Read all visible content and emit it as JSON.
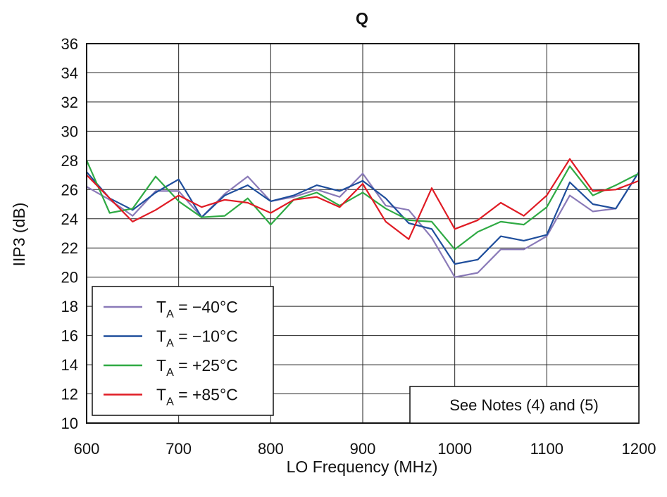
{
  "chart_data": {
    "type": "line",
    "title": "Q",
    "xlabel": "LO Frequency (MHz)",
    "ylabel": "IIP3 (dB)",
    "xlim": [
      600,
      1200
    ],
    "ylim": [
      10,
      36
    ],
    "xticks": [
      600,
      700,
      800,
      900,
      1000,
      1100,
      1200
    ],
    "yticks": [
      10,
      12,
      14,
      16,
      18,
      20,
      22,
      24,
      26,
      28,
      30,
      32,
      34,
      36
    ],
    "grid": true,
    "legend_position": "bottom-left",
    "x": [
      600,
      625,
      650,
      675,
      700,
      725,
      750,
      775,
      800,
      825,
      850,
      875,
      900,
      925,
      950,
      975,
      1000,
      1025,
      1050,
      1075,
      1100,
      1125,
      1150,
      1175,
      1200
    ],
    "series": [
      {
        "label_main": "T",
        "label_sub": "A",
        "label_rest": " = −40°C",
        "color": "#8a7ab8",
        "values": [
          26.2,
          25.3,
          24.2,
          25.9,
          25.9,
          24.1,
          25.7,
          26.9,
          25.2,
          25.5,
          26.0,
          25.5,
          27.1,
          24.9,
          24.6,
          22.7,
          20.0,
          20.3,
          21.9,
          21.9,
          22.8,
          25.6,
          24.5,
          24.7,
          27.2
        ]
      },
      {
        "label_main": "T",
        "label_sub": "A",
        "label_rest": " = −10°C",
        "color": "#1f4e9c",
        "values": [
          27.2,
          25.4,
          24.6,
          25.8,
          26.7,
          24.1,
          25.6,
          26.3,
          25.2,
          25.6,
          26.3,
          25.9,
          26.6,
          25.4,
          23.7,
          23.3,
          20.9,
          21.2,
          22.8,
          22.5,
          22.9,
          26.5,
          25.0,
          24.7,
          27.2
        ]
      },
      {
        "label_main": "T",
        "label_sub": "A",
        "label_rest": " = +25°C",
        "color": "#2faa44",
        "values": [
          28.0,
          24.4,
          24.7,
          26.9,
          25.2,
          24.1,
          24.2,
          25.4,
          23.6,
          25.3,
          25.8,
          24.9,
          25.8,
          24.7,
          23.9,
          23.8,
          21.9,
          23.1,
          23.8,
          23.6,
          24.8,
          27.6,
          25.6,
          26.3,
          27.1
        ]
      },
      {
        "label_main": "T",
        "label_sub": "A",
        "label_rest": " = +85°C",
        "color": "#e01b24",
        "values": [
          27.0,
          25.4,
          23.8,
          24.6,
          25.6,
          24.8,
          25.3,
          25.1,
          24.4,
          25.3,
          25.5,
          24.8,
          26.4,
          23.8,
          22.6,
          26.1,
          23.3,
          23.9,
          25.1,
          24.2,
          25.6,
          28.1,
          25.9,
          26.0,
          26.6
        ]
      }
    ],
    "annotation": "See Notes (4) and (5)"
  }
}
